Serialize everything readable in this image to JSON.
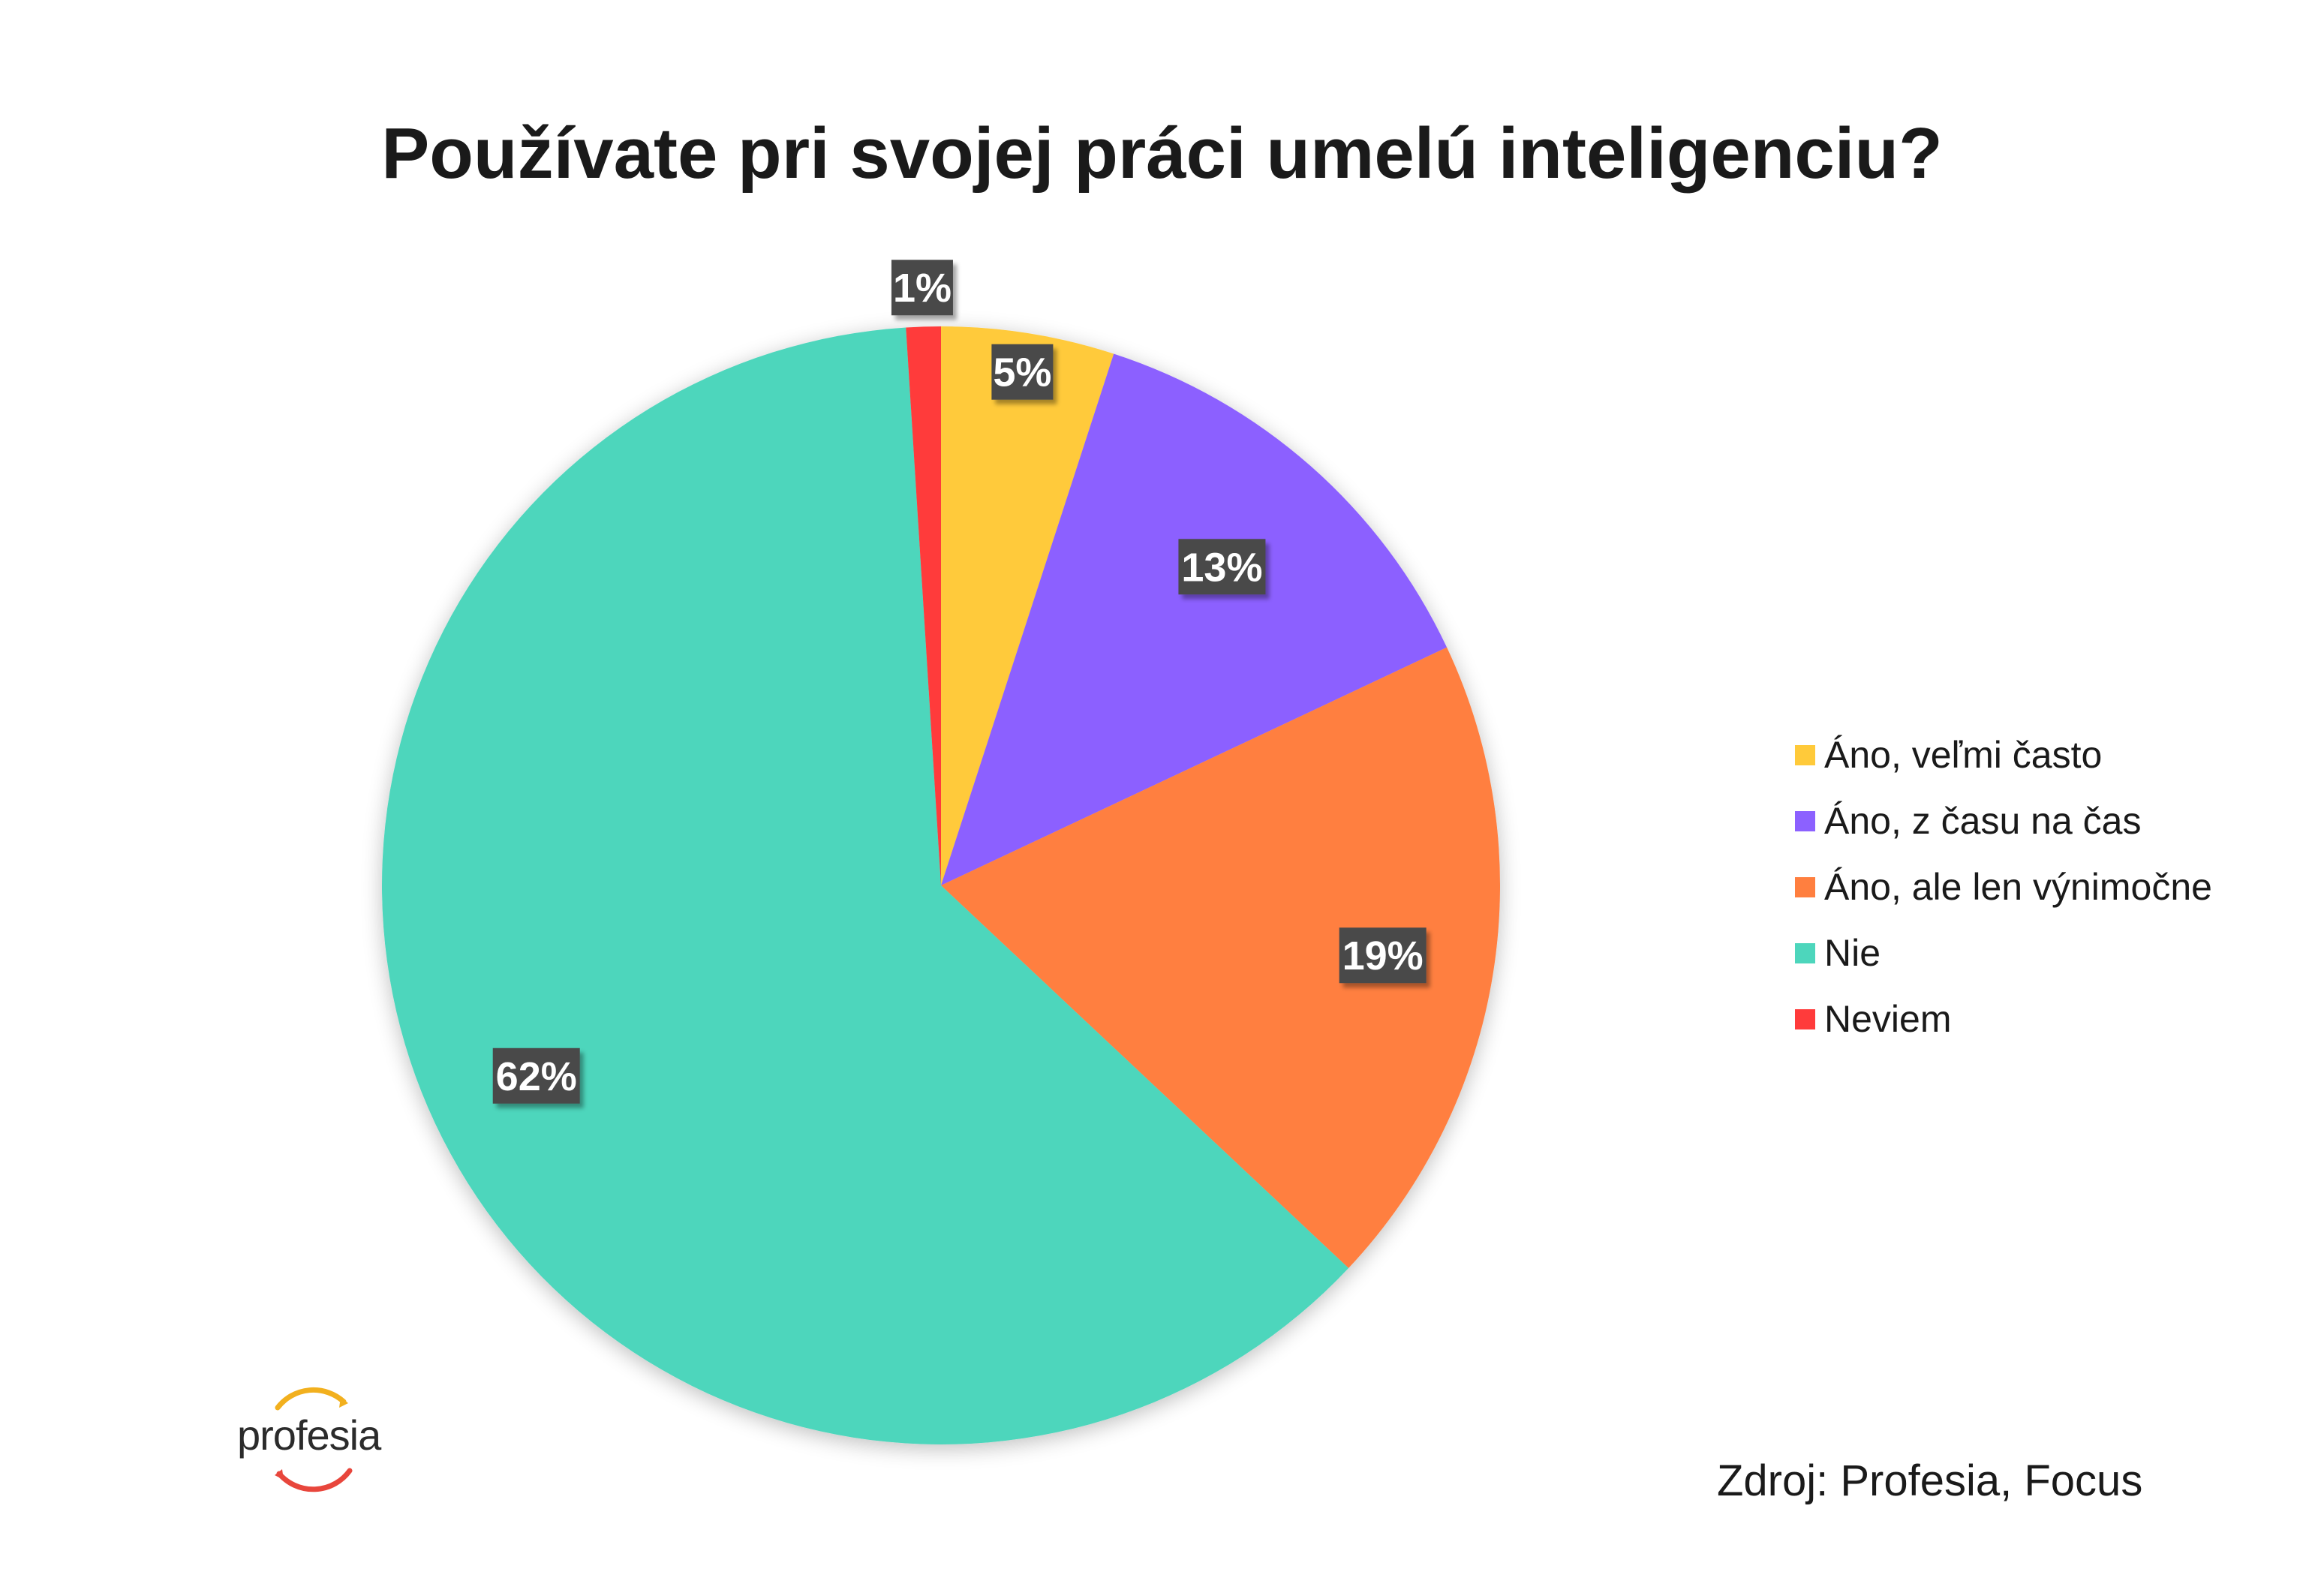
{
  "chart_data": {
    "type": "pie",
    "title": "Používate pri svojej práci umelú inteligenciu?",
    "categories": [
      "Áno, veľmi často",
      "Áno, z času na čas",
      "Áno, ale len výnimočne",
      "Nie",
      "Neviem"
    ],
    "values": [
      5,
      13,
      19,
      62,
      1
    ],
    "value_labels": [
      "5%",
      "13%",
      "19%",
      "62%",
      "1%"
    ],
    "colors": [
      "#FFCA3A",
      "#8C61FF",
      "#FF7F3F",
      "#4DD6BC",
      "#FF3B3B"
    ],
    "legend_position": "right"
  },
  "source": "Zdroj: Profesia, Focus",
  "logo": {
    "text": "profesia"
  }
}
